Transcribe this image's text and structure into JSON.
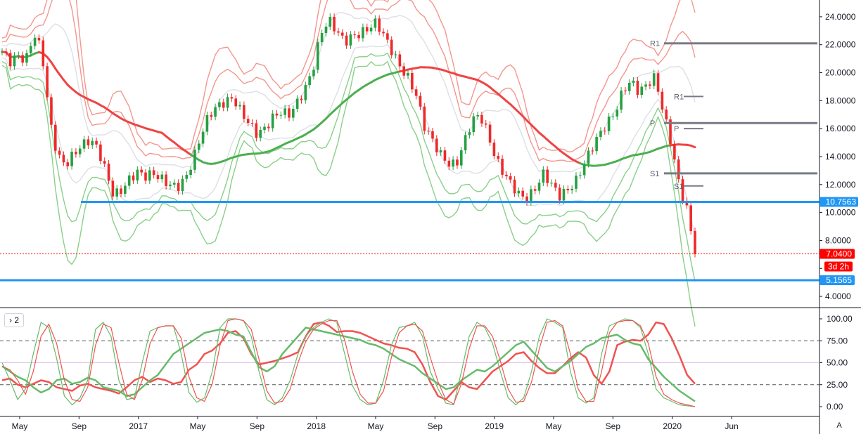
{
  "colors": {
    "up": "#26a041",
    "down": "#ef2929",
    "band_red": "#f28b82",
    "band_green": "#7ccb7c",
    "band_grey": "#d8dbe2",
    "ma_red": "#ee4444",
    "ma_green": "#4caf50",
    "hline_blue": "#2196f3",
    "pivot_grey": "#787b86",
    "last_price": "#ff0000",
    "stoch_fast": "#ef5350",
    "stoch_slow": "#66bb6a",
    "osc_mid": "#e1bee7",
    "grid_dash": "#555555"
  },
  "toolbar": {
    "pane_toggle": "› 2",
    "auto_scale": "A"
  },
  "labels": {
    "r1_left": "R1",
    "p_left": "P",
    "s1_left": "S1",
    "r1_right": "R1",
    "p_right": "P",
    "s1_right": "S1"
  },
  "badges": {
    "upper_line": "10.7563",
    "last_price": "7.0400",
    "countdown": "3d 2h",
    "lower_line": "5.1565"
  },
  "chart_data": [
    {
      "type": "candlestick",
      "title": "",
      "ylim": [
        3.2,
        25.2
      ],
      "y_scale": "linear",
      "y_ticks": [
        4,
        6,
        8,
        10,
        12,
        14,
        16,
        18,
        20,
        22,
        24
      ],
      "y_tick_labels": [
        "4.0000",
        "6.0000",
        "8.0000",
        "10.0000",
        "12.0000",
        "14.0000",
        "16.0000",
        "18.0000",
        "20.0000",
        "22.0000",
        "24.0000"
      ],
      "x_tick_labels": [
        "May",
        "Sep",
        "2017",
        "May",
        "Sep",
        "2018",
        "May",
        "Sep",
        "2019",
        "May",
        "Sep",
        "2020",
        "Jun"
      ],
      "price_path": [
        21.5,
        20.8,
        21.2,
        20.9,
        22.8,
        21.5,
        16.5,
        14.0,
        13.4,
        14.2,
        14.8,
        15.2,
        14.6,
        13.0,
        11.2,
        11.6,
        12.4,
        12.9,
        12.6,
        12.8,
        12.4,
        12.0,
        11.8,
        12.4,
        13.8,
        15.6,
        17.0,
        17.6,
        17.9,
        18.2,
        17.2,
        16.4,
        15.6,
        16.0,
        16.8,
        17.2,
        17.0,
        17.8,
        18.8,
        20.2,
        22.8,
        23.8,
        23.0,
        22.2,
        22.6,
        22.8,
        23.2,
        23.6,
        22.6,
        21.5,
        20.4,
        19.6,
        18.4,
        16.2,
        15.2,
        14.2,
        13.5,
        13.4,
        15.0,
        16.6,
        17.0,
        15.6,
        13.8,
        12.8,
        12.0,
        11.2,
        11.0,
        11.8,
        12.8,
        12.0,
        11.2,
        11.6,
        12.2,
        13.4,
        14.6,
        15.6,
        16.4,
        17.2,
        18.8,
        19.4,
        18.6,
        19.2,
        19.7,
        17.2,
        15.0,
        12.0,
        10.2,
        7.04
      ],
      "horizontal_lines": [
        10.7563,
        5.1565
      ],
      "pivots_left": {
        "R1": 22.1,
        "P": 16.4,
        "S1": 12.8
      },
      "pivots_right": {
        "R1": 18.3,
        "P": 16.0,
        "S1": 11.9
      },
      "last_price": 7.04
    },
    {
      "type": "line",
      "title": "",
      "ylim": [
        0,
        100
      ],
      "y_ticks": [
        0,
        25,
        50,
        75,
        100
      ],
      "y_tick_labels": [
        "0.00",
        "25.00",
        "50.00",
        "75.00",
        "100.00"
      ],
      "guide_lines": [
        25,
        50,
        75
      ],
      "series": [
        {
          "values": [
            30,
            32,
            25,
            22,
            26,
            30,
            28,
            22,
            20,
            18,
            24,
            26,
            22,
            20,
            18,
            15,
            22,
            30,
            34,
            28,
            32,
            30,
            26,
            28,
            42,
            48,
            60,
            64,
            72,
            84,
            86,
            78,
            60,
            48,
            50,
            52,
            55,
            58,
            62,
            80,
            94,
            96,
            92,
            85,
            86,
            86,
            84,
            80,
            76,
            72,
            70,
            67,
            66,
            62,
            48,
            28,
            12,
            8,
            18,
            28,
            22,
            20,
            30,
            40,
            46,
            52,
            60,
            62,
            52,
            44,
            38,
            38,
            46,
            55,
            62,
            56,
            36,
            26,
            40,
            70,
            74,
            76,
            75,
            82,
            96,
            94,
            78,
            58,
            36,
            26
          ]
        },
        {
          "values": [
            46,
            40,
            34,
            30,
            22,
            16,
            20,
            30,
            32,
            26,
            28,
            33,
            30,
            22,
            20,
            18,
            12,
            14,
            22,
            30,
            36,
            48,
            60,
            66,
            72,
            78,
            84,
            86,
            88,
            86,
            82,
            80,
            62,
            45,
            40,
            46,
            60,
            70,
            80,
            90,
            88,
            86,
            84,
            82,
            80,
            78,
            76,
            72,
            70,
            66,
            60,
            54,
            50,
            46,
            38,
            32,
            26,
            20,
            22,
            30,
            36,
            42,
            40,
            46,
            54,
            62,
            70,
            74,
            64,
            54,
            44,
            40,
            46,
            52,
            60,
            68,
            72,
            78,
            80,
            82,
            76,
            72,
            70,
            54,
            44,
            34,
            26,
            18,
            12,
            6
          ]
        },
        {
          "values": [
            50,
            30,
            8,
            20,
            60,
            96,
            90,
            55,
            12,
            2,
            10,
            30,
            88,
            96,
            80,
            30,
            8,
            10,
            50,
            86,
            90,
            92,
            92,
            60,
            16,
            5,
            10,
            40,
            90,
            100,
            100,
            98,
            80,
            40,
            8,
            2,
            10,
            30,
            60,
            80,
            90,
            96,
            100,
            96,
            60,
            24,
            8,
            2,
            4,
            30,
            70,
            90,
            92,
            96,
            80,
            40,
            20,
            4,
            2,
            40,
            80,
            96,
            90,
            72,
            40,
            10,
            2,
            10,
            40,
            80,
            100,
            96,
            90,
            40,
            10,
            4,
            10,
            60,
            92,
            96,
            100,
            98,
            90,
            60,
            20,
            10,
            6,
            2,
            1,
            0
          ]
        },
        {
          "values": [
            46,
            42,
            30,
            14,
            40,
            80,
            94,
            72,
            30,
            8,
            6,
            22,
            70,
            94,
            90,
            50,
            14,
            8,
            30,
            72,
            90,
            92,
            92,
            78,
            34,
            10,
            6,
            26,
            70,
            98,
            100,
            98,
            88,
            54,
            18,
            4,
            6,
            20,
            50,
            74,
            88,
            94,
            98,
            98,
            76,
            40,
            14,
            4,
            4,
            18,
            56,
            84,
            92,
            94,
            86,
            56,
            28,
            8,
            3,
            26,
            66,
            92,
            92,
            80,
            52,
            20,
            5,
            6,
            28,
            66,
            96,
            98,
            92,
            60,
            20,
            6,
            6,
            40,
            84,
            96,
            98,
            98,
            92,
            72,
            34,
            14,
            8,
            4,
            2,
            0
          ]
        }
      ]
    }
  ]
}
